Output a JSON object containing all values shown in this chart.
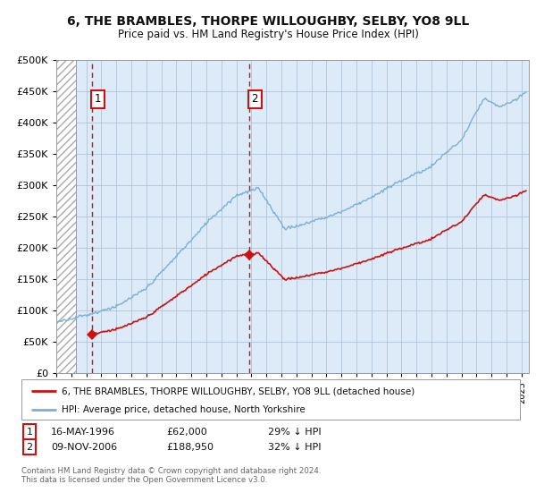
{
  "title": "6, THE BRAMBLES, THORPE WILLOUGHBY, SELBY, YO8 9LL",
  "subtitle": "Price paid vs. HM Land Registry's House Price Index (HPI)",
  "background_color": "#ffffff",
  "plot_bg_color": "#ddeaf7",
  "hatch_bg_color": "#ffffff",
  "grid_color": "#b0c4d8",
  "hpi_color": "#7ab0d8",
  "sale_color": "#cc1111",
  "sale1_year": 1996.38,
  "sale1_price": 62000,
  "sale2_year": 2006.86,
  "sale2_price": 188950,
  "legend_sale_label": "6, THE BRAMBLES, THORPE WILLOUGHBY, SELBY, YO8 9LL (detached house)",
  "legend_hpi_label": "HPI: Average price, detached house, North Yorkshire",
  "note1_label": "1",
  "note1_date": "16-MAY-1996",
  "note1_price": "£62,000",
  "note1_hpi": "29% ↓ HPI",
  "note2_label": "2",
  "note2_date": "09-NOV-2006",
  "note2_price": "£188,950",
  "note2_hpi": "32% ↓ HPI",
  "copyright": "Contains HM Land Registry data © Crown copyright and database right 2024.\nThis data is licensed under the Open Government Licence v3.0.",
  "xmin": 1994,
  "xmax": 2025.5,
  "ymin": 0,
  "ymax": 500000,
  "hatch_end": 1995.3
}
